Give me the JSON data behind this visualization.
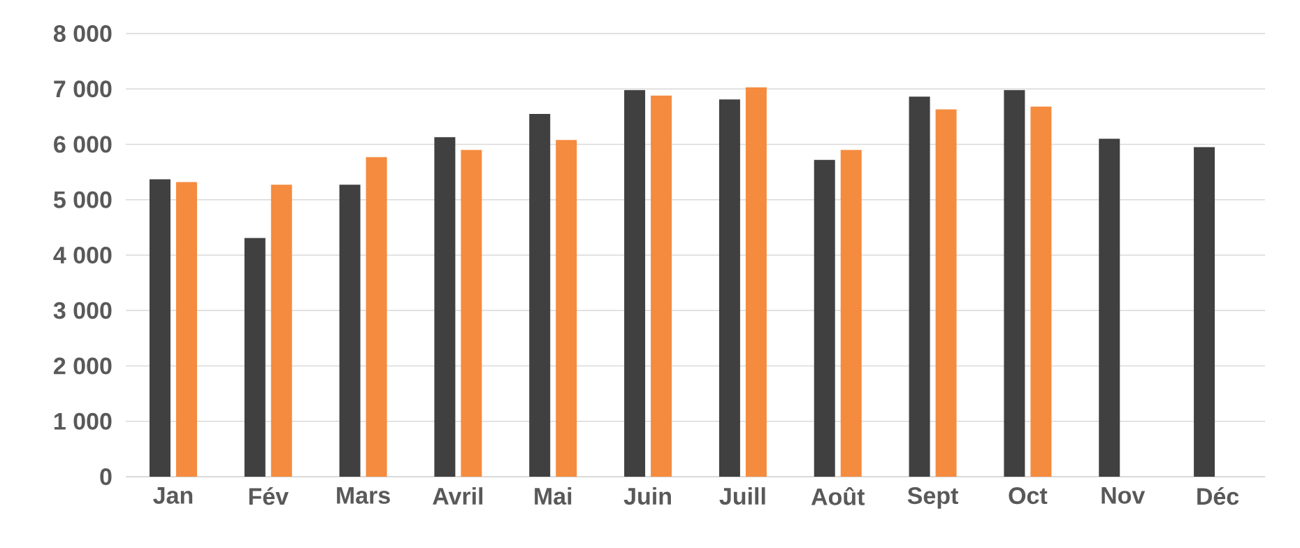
{
  "chart_data": {
    "type": "bar",
    "categories": [
      "Jan",
      "Fév",
      "Mars",
      "Avril",
      "Mai",
      "Juin",
      "Juill",
      "Août",
      "Sept",
      "Oct",
      "Nov",
      "Déc"
    ],
    "series": [
      {
        "color": "#404040",
        "values": [
          5370,
          4310,
          5270,
          6130,
          6550,
          6980,
          6810,
          5720,
          6860,
          6980,
          6100,
          5950
        ]
      },
      {
        "color": "#f58b3f",
        "values": [
          5320,
          5270,
          5770,
          5900,
          6080,
          6880,
          7030,
          5900,
          6630,
          6680,
          null,
          null
        ]
      }
    ],
    "ylim": [
      0,
      8000
    ],
    "yticks": [
      {
        "value": 0,
        "label": "0"
      },
      {
        "value": 1000,
        "label": "1 000"
      },
      {
        "value": 2000,
        "label": "2 000"
      },
      {
        "value": 3000,
        "label": "3 000"
      },
      {
        "value": 4000,
        "label": "4 000"
      },
      {
        "value": 5000,
        "label": "5 000"
      },
      {
        "value": 6000,
        "label": "6 000"
      },
      {
        "value": 7000,
        "label": "7 000"
      },
      {
        "value": 8000,
        "label": "8 000"
      }
    ],
    "grid": "y",
    "legend": false
  }
}
